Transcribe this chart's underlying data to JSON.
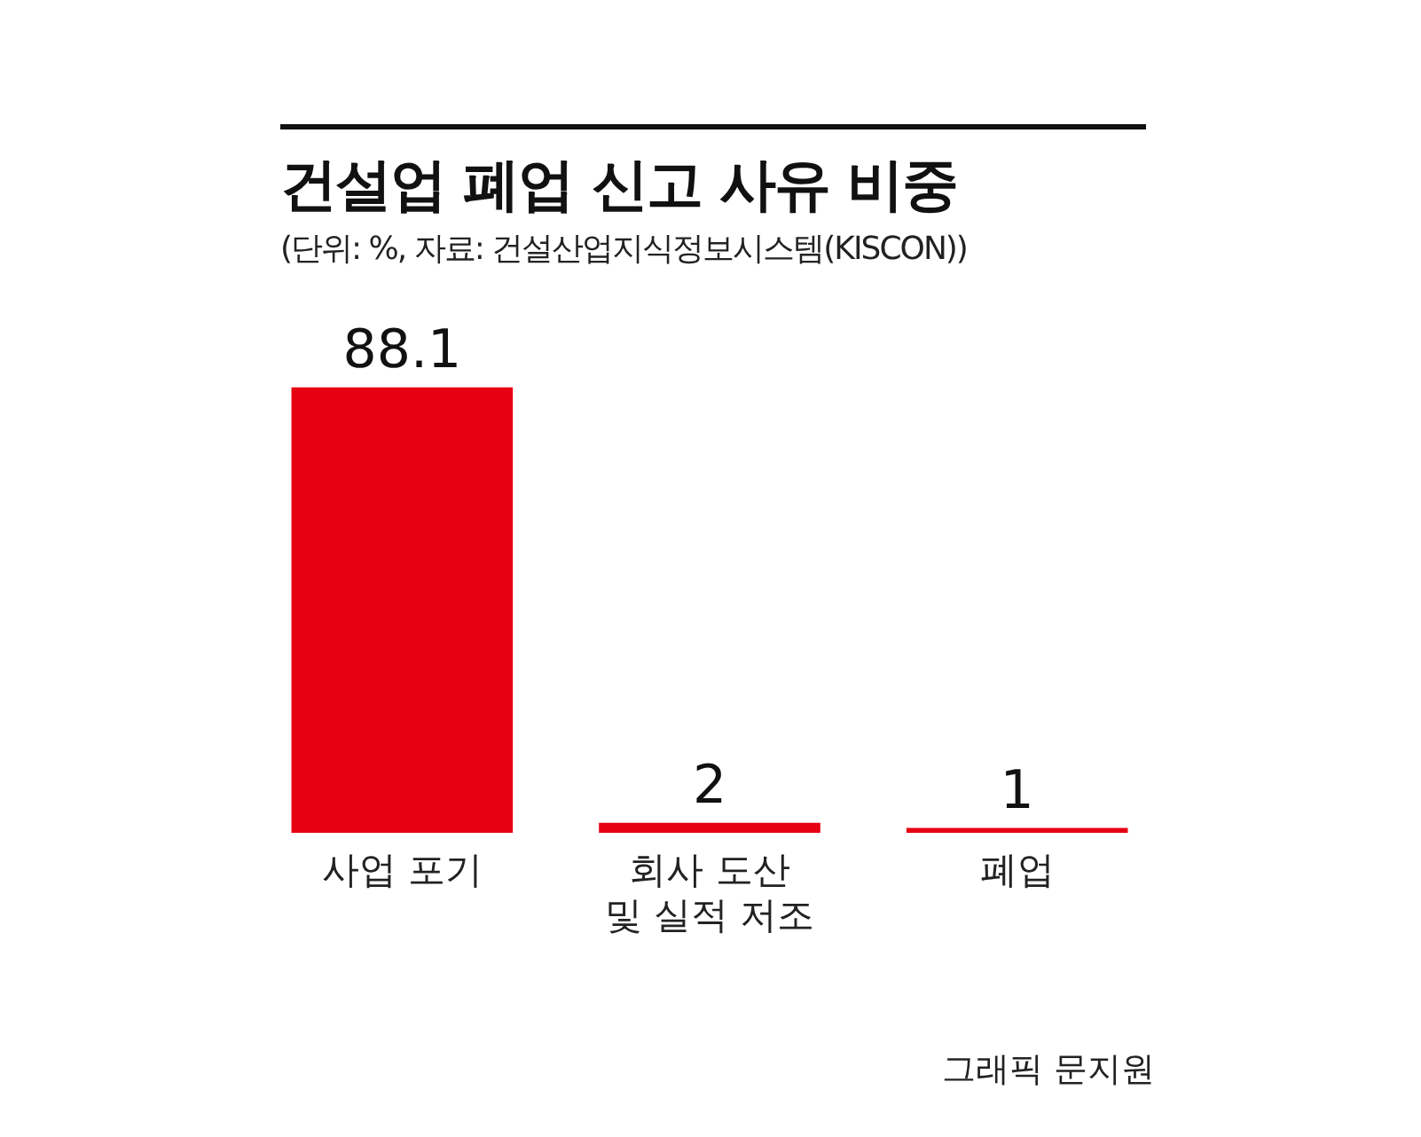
{
  "chart_data": {
    "type": "bar",
    "title": "건설업 폐업 신고 사유 비중",
    "subtitle": "(단위: %, 자료: 건설산업지식정보시스템(KISCON))",
    "categories": [
      "사업 포기",
      "회사 도산 및 실적 저조",
      "폐업"
    ],
    "values": [
      88.1,
      2,
      1
    ],
    "color": "#e60012",
    "data_labels": true,
    "grid": false,
    "legend": false,
    "tick_labels": "x",
    "annotations": [
      "그래픽 문지원"
    ]
  }
}
